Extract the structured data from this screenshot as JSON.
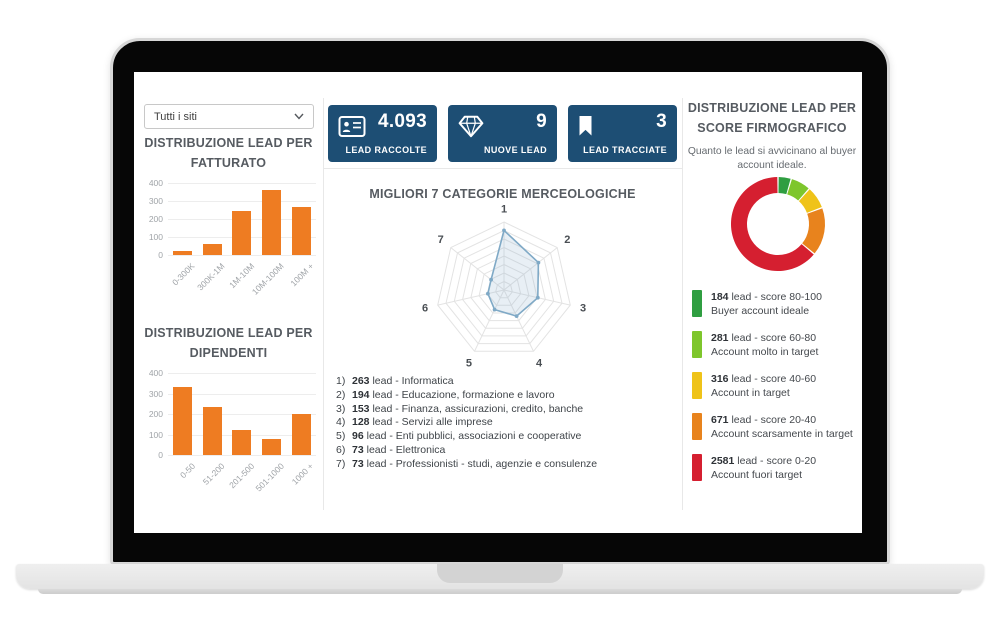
{
  "filters": {
    "site_selector_value": "Tutti i siti"
  },
  "kpis": [
    {
      "value": "4.093",
      "label": "LEAD RACCOLTE",
      "icon": "id-card-icon"
    },
    {
      "value": "9",
      "label": "NUOVE LEAD",
      "icon": "diamond-icon"
    },
    {
      "value": "3",
      "label": "LEAD TRACCIATE",
      "icon": "bookmark-icon"
    }
  ],
  "colors": {
    "navy": "#1d4e74",
    "bar_orange": "#ee7c22",
    "score_green": "#2f9e41",
    "score_light_green": "#7ec62c",
    "score_yellow": "#efc319",
    "score_orange": "#e8831d",
    "score_red": "#d51f30"
  },
  "chart_data": [
    {
      "id": "fatturato",
      "type": "bar",
      "title": "DISTRIBUZIONE LEAD PER FATTURATO",
      "categories": [
        "0-300K",
        "300K-1M",
        "1M-10M",
        "10M-100M",
        "100M +"
      ],
      "values": [
        25,
        60,
        245,
        360,
        265
      ],
      "ylim": [
        0,
        400
      ],
      "yticks": [
        0,
        100,
        200,
        300,
        400
      ],
      "color": "#ee7c22",
      "grid": true,
      "legend": "none"
    },
    {
      "id": "dipendenti",
      "type": "bar",
      "title": "DISTRIBUZIONE LEAD PER DIPENDENTI",
      "categories": [
        "0-50",
        "51-200",
        "201-500",
        "501-1000",
        "1000 +"
      ],
      "values": [
        330,
        235,
        120,
        78,
        198
      ],
      "ylim": [
        0,
        400
      ],
      "yticks": [
        0,
        100,
        200,
        300,
        400
      ],
      "color": "#ee7c22",
      "grid": true,
      "legend": "none"
    },
    {
      "id": "categorie",
      "type": "radar",
      "title": "MIGLIORI 7 CATEGORIE MERCEOLOGICHE",
      "axes": [
        "1",
        "2",
        "3",
        "4",
        "5",
        "6",
        "7"
      ],
      "values": [
        263,
        194,
        153,
        128,
        96,
        73,
        73
      ],
      "max": 300,
      "rings": 8,
      "stroke": "#7fa9c6",
      "fill": "rgba(127,169,198,0.18)",
      "items": [
        {
          "value": 263,
          "label": "Informatica"
        },
        {
          "value": 194,
          "label": "Educazione, formazione e lavoro"
        },
        {
          "value": 153,
          "label": "Finanza, assicurazioni, credito, banche"
        },
        {
          "value": 128,
          "label": "Servizi alle imprese"
        },
        {
          "value": 96,
          "label": "Enti pubblici, associazioni e cooperative"
        },
        {
          "value": 73,
          "label": "Elettronica"
        },
        {
          "value": 73,
          "label": "Professionisti - studi, agenzie e consulenze"
        }
      ]
    },
    {
      "id": "score",
      "type": "pie",
      "title": "DISTRIBUZIONE LEAD PER SCORE FIRMOGRAFICO",
      "subtitle": "Quanto le lead si avvicinano al buyer account ideale.",
      "donut_start": "top",
      "segments": [
        {
          "value": 184,
          "score": "score 80-100",
          "desc": "Buyer account ideale",
          "color": "#2f9e41"
        },
        {
          "value": 281,
          "score": "score 60-80",
          "desc": "Account molto in target",
          "color": "#7ec62c"
        },
        {
          "value": 316,
          "score": "score 40-60",
          "desc": "Account in target",
          "color": "#efc319"
        },
        {
          "value": 671,
          "score": "score 20-40",
          "desc": "Account scarsamente in target",
          "color": "#e8831d"
        },
        {
          "value": 2581,
          "score": "score 0-20",
          "desc": "Account fuori target",
          "color": "#d51f30"
        }
      ]
    }
  ]
}
